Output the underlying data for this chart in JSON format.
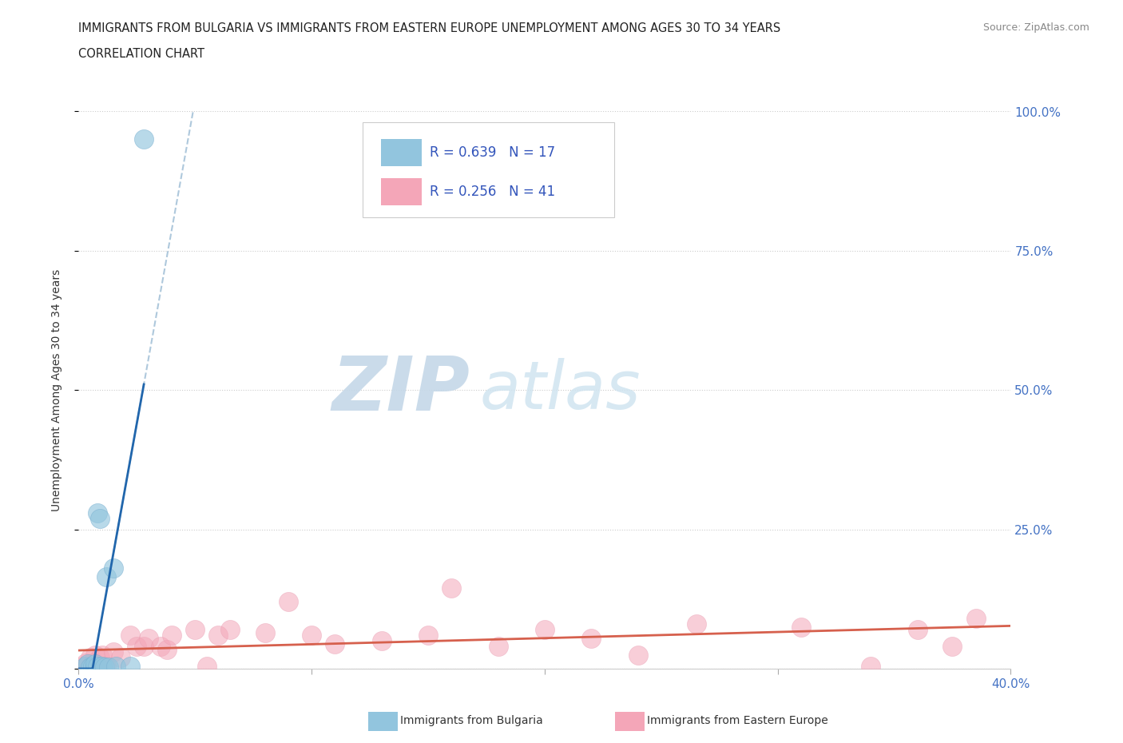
{
  "title_line1": "IMMIGRANTS FROM BULGARIA VS IMMIGRANTS FROM EASTERN EUROPE UNEMPLOYMENT AMONG AGES 30 TO 34 YEARS",
  "title_line2": "CORRELATION CHART",
  "source_text": "Source: ZipAtlas.com",
  "ylabel": "Unemployment Among Ages 30 to 34 years",
  "xlim": [
    0.0,
    0.4
  ],
  "ylim": [
    0.0,
    1.0
  ],
  "xticks": [
    0.0,
    0.1,
    0.2,
    0.3,
    0.4
  ],
  "xticklabels": [
    "0.0%",
    "",
    "",
    "",
    "40.0%"
  ],
  "yticks": [
    0.0,
    0.25,
    0.5,
    0.75,
    1.0
  ],
  "yticklabels_right": [
    "",
    "25.0%",
    "50.0%",
    "75.0%",
    "100.0%"
  ],
  "grid_color": "#cccccc",
  "watermark_zip": "ZIP",
  "watermark_atlas": "atlas",
  "watermark_color": "#dce8f0",
  "bg_color": "#ffffff",
  "legend_R1": "R = 0.639",
  "legend_N1": "N = 17",
  "legend_R2": "R = 0.256",
  "legend_N2": "N = 41",
  "color_bulgaria": "#92c5de",
  "color_eastern": "#f4a6b8",
  "trendline_bulgaria_color": "#2166ac",
  "trendline_eastern_color": "#d6604d",
  "trendline_dashed_color": "#aec8dc",
  "bulgaria_x": [
    0.003,
    0.004,
    0.005,
    0.006,
    0.007,
    0.007,
    0.008,
    0.008,
    0.009,
    0.01,
    0.011,
    0.012,
    0.013,
    0.015,
    0.016,
    0.022,
    0.028
  ],
  "bulgaria_y": [
    0.005,
    0.008,
    0.003,
    0.005,
    0.003,
    0.008,
    0.28,
    0.005,
    0.27,
    0.005,
    0.003,
    0.165,
    0.003,
    0.18,
    0.005,
    0.005,
    0.95
  ],
  "eastern_x": [
    0.002,
    0.003,
    0.004,
    0.005,
    0.005,
    0.006,
    0.007,
    0.008,
    0.009,
    0.01,
    0.012,
    0.015,
    0.018,
    0.022,
    0.025,
    0.028,
    0.03,
    0.035,
    0.038,
    0.04,
    0.05,
    0.055,
    0.06,
    0.065,
    0.08,
    0.09,
    0.1,
    0.11,
    0.13,
    0.15,
    0.16,
    0.18,
    0.2,
    0.22,
    0.24,
    0.265,
    0.31,
    0.34,
    0.36,
    0.375,
    0.385
  ],
  "eastern_y": [
    0.005,
    0.01,
    0.005,
    0.02,
    0.005,
    0.01,
    0.025,
    0.005,
    0.02,
    0.025,
    0.005,
    0.03,
    0.02,
    0.06,
    0.04,
    0.04,
    0.055,
    0.04,
    0.035,
    0.06,
    0.07,
    0.005,
    0.06,
    0.07,
    0.065,
    0.12,
    0.06,
    0.045,
    0.05,
    0.06,
    0.145,
    0.04,
    0.07,
    0.055,
    0.025,
    0.08,
    0.075,
    0.005,
    0.07,
    0.04,
    0.09
  ]
}
